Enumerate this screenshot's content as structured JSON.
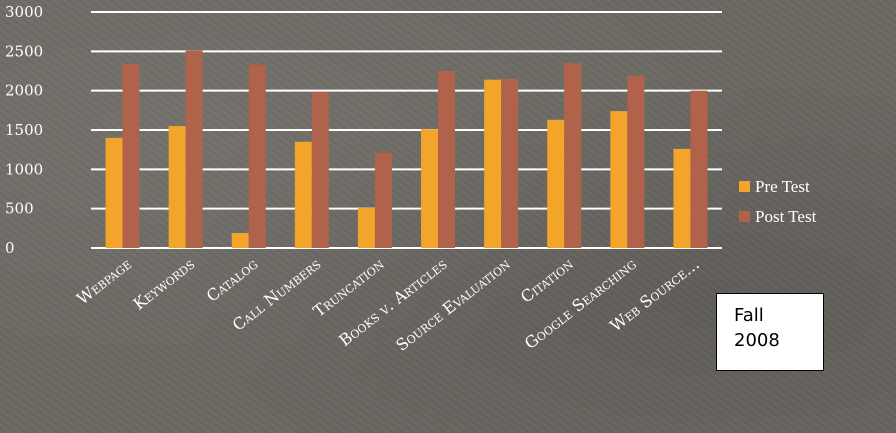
{
  "chart_data": {
    "type": "bar",
    "categories": [
      "Webpage",
      "Keywords",
      "Catalog",
      "Call Numbers",
      "Truncation",
      "Books v. Articles",
      "Source Evaluation",
      "Citation",
      "Google Searching",
      "Web Source…"
    ],
    "series": [
      {
        "name": "Pre Test",
        "color": "#f2a52a",
        "values": [
          1400,
          1550,
          190,
          1350,
          510,
          1510,
          2140,
          1630,
          1740,
          1260
        ]
      },
      {
        "name": "Post Test",
        "color": "#b0634a",
        "values": [
          2340,
          2510,
          2330,
          1980,
          1210,
          2250,
          2150,
          2350,
          2190,
          2000
        ]
      }
    ],
    "yticks": [
      "0",
      "500",
      "1000",
      "1500",
      "2000",
      "2500",
      "3000"
    ],
    "ylim": [
      0,
      3000
    ],
    "grid": true,
    "legend": "right",
    "title": "",
    "xlabel": "",
    "ylabel": ""
  },
  "annotation": {
    "text": "Fall\n2008"
  }
}
